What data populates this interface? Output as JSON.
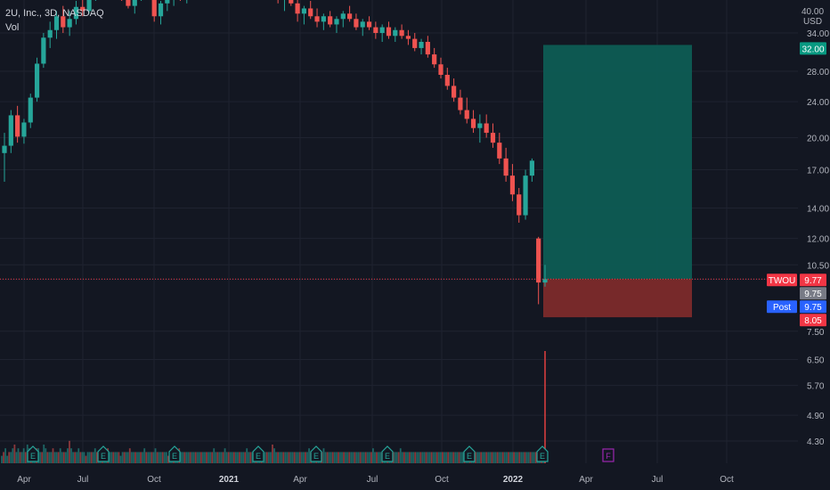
{
  "legend": {
    "title": "2U, Inc., 3D, NASDAQ",
    "vol": "Vol"
  },
  "axis": {
    "unit_top": "40.00",
    "unit_bottom": "USD"
  },
  "chart_data": {
    "type": "candlestick",
    "symbol": "TWOU",
    "scale": "log",
    "y_ticks": [
      "34.00",
      "28.00",
      "24.00",
      "20.00",
      "17.00",
      "14.00",
      "12.00",
      "10.50",
      "9.75",
      "7.50",
      "6.50",
      "5.70",
      "4.90",
      "4.30"
    ],
    "y_tick_values": [
      34,
      28,
      24,
      20,
      17,
      14,
      12,
      10.5,
      9.75,
      7.5,
      6.5,
      5.7,
      4.9,
      4.3
    ],
    "x_ticks": [
      "Apr",
      "Jul",
      "Oct",
      "2021",
      "Apr",
      "Jul",
      "Oct",
      "2022",
      "Apr",
      "Jul",
      "Oct"
    ],
    "x_tick_bold": [
      false,
      false,
      false,
      true,
      false,
      false,
      false,
      true,
      false,
      false,
      false
    ],
    "price_labels": [
      {
        "text": "32.00",
        "value": 32.0,
        "color": "#089981",
        "kind": "target"
      },
      {
        "text": "9.77",
        "value": 9.77,
        "color": "#f23645",
        "kind": "last",
        "tag": "TWOU"
      },
      {
        "text": "9.75",
        "value": 9.75,
        "color": "#787b86",
        "kind": "level"
      },
      {
        "text": "9.75",
        "value": 9.75,
        "color": "#2962ff",
        "kind": "post",
        "tag": "Post"
      },
      {
        "text": "8.05",
        "value": 8.05,
        "color": "#f23645",
        "kind": "stop"
      }
    ],
    "position": {
      "entry": 9.77,
      "target": 32.0,
      "stop": 8.05
    },
    "series": [
      {
        "name": "price",
        "points": [
          [
            18.5,
            20.5,
            16.0,
            19.2
          ],
          [
            19.2,
            23.0,
            18.5,
            22.4
          ],
          [
            22.4,
            23.5,
            19.5,
            20.1
          ],
          [
            20.1,
            22.0,
            19.4,
            21.6
          ],
          [
            21.6,
            25.0,
            21.0,
            24.5
          ],
          [
            24.5,
            30.0,
            24.0,
            29.1
          ],
          [
            29.1,
            34.0,
            28.5,
            33.2
          ],
          [
            33.2,
            36.0,
            31.5,
            34.5
          ],
          [
            34.5,
            38.0,
            33.0,
            37.0
          ],
          [
            37.0,
            39.0,
            34.0,
            35.0
          ],
          [
            35.0,
            38.0,
            33.5,
            36.5
          ],
          [
            36.5,
            40.0,
            35.5,
            38.8
          ],
          [
            38.8,
            41.0,
            37.0,
            38.0
          ],
          [
            38.0,
            42.0,
            37.5,
            41.5
          ],
          [
            41.5,
            44.0,
            40.0,
            42.5
          ],
          [
            42.5,
            46.0,
            41.0,
            44.0
          ],
          [
            44.0,
            48.0,
            42.0,
            46.5
          ],
          [
            46.5,
            48.0,
            42.0,
            43.0
          ],
          [
            43.0,
            45.0,
            40.0,
            41.5
          ],
          [
            41.5,
            43.5,
            38.5,
            39.0
          ],
          [
            39.0,
            42.0,
            37.5,
            41.0
          ],
          [
            41.0,
            44.0,
            40.0,
            43.5
          ],
          [
            43.5,
            46.0,
            41.5,
            42.0
          ],
          [
            42.0,
            44.0,
            36.0,
            37.0
          ],
          [
            37.0,
            40.0,
            35.5,
            39.5
          ],
          [
            39.5,
            42.0,
            38.0,
            40.5
          ],
          [
            40.5,
            43.0,
            39.0,
            42.0
          ],
          [
            42.0,
            44.0,
            40.0,
            41.0
          ],
          [
            41.0,
            43.0,
            39.5,
            42.5
          ],
          [
            42.5,
            45.0,
            41.5,
            44.5
          ],
          [
            44.5,
            47.0,
            43.0,
            45.5
          ],
          [
            45.5,
            48.0,
            44.0,
            46.5
          ],
          [
            46.5,
            49.0,
            45.0,
            45.8
          ],
          [
            45.8,
            48.0,
            44.5,
            47.0
          ],
          [
            47.0,
            50.0,
            46.0,
            48.5
          ],
          [
            48.5,
            50.0,
            46.5,
            47.0
          ],
          [
            47.0,
            49.0,
            45.5,
            48.0
          ],
          [
            48.0,
            50.0,
            47.0,
            49.5
          ],
          [
            49.5,
            51.0,
            47.5,
            48.0
          ],
          [
            48.0,
            49.5,
            45.5,
            46.0
          ],
          [
            46.0,
            48.0,
            43.5,
            44.0
          ],
          [
            44.0,
            46.0,
            41.0,
            42.0
          ],
          [
            42.0,
            44.0,
            39.5,
            40.5
          ],
          [
            40.5,
            42.0,
            38.0,
            41.5
          ],
          [
            41.5,
            43.0,
            39.0,
            39.5
          ],
          [
            39.5,
            41.0,
            36.0,
            37.5
          ],
          [
            37.5,
            39.0,
            35.5,
            38.5
          ],
          [
            38.5,
            40.0,
            36.5,
            37.0
          ],
          [
            37.0,
            38.5,
            35.0,
            36.0
          ],
          [
            36.0,
            37.5,
            34.5,
            37.0
          ],
          [
            37.0,
            38.0,
            35.0,
            35.5
          ],
          [
            35.5,
            37.0,
            34.0,
            36.5
          ],
          [
            36.5,
            38.0,
            35.0,
            37.5
          ],
          [
            37.5,
            39.0,
            36.0,
            36.5
          ],
          [
            36.5,
            37.5,
            34.5,
            35.0
          ],
          [
            35.0,
            36.5,
            33.5,
            36.0
          ],
          [
            36.0,
            37.0,
            34.5,
            35.0
          ],
          [
            35.0,
            36.0,
            33.0,
            34.0
          ],
          [
            34.0,
            35.5,
            32.5,
            35.0
          ],
          [
            35.0,
            36.0,
            33.0,
            33.5
          ],
          [
            33.5,
            35.0,
            32.5,
            34.5
          ],
          [
            34.5,
            35.5,
            33.0,
            33.5
          ],
          [
            33.5,
            34.5,
            32.0,
            33.0
          ],
          [
            33.0,
            34.0,
            31.0,
            31.5
          ],
          [
            31.5,
            33.0,
            30.5,
            32.5
          ],
          [
            32.5,
            33.5,
            30.0,
            30.5
          ],
          [
            30.5,
            31.5,
            28.5,
            29.0
          ],
          [
            29.0,
            30.0,
            27.0,
            27.5
          ],
          [
            27.5,
            28.5,
            25.5,
            26.0
          ],
          [
            26.0,
            27.0,
            24.0,
            24.5
          ],
          [
            24.5,
            25.5,
            22.5,
            23.0
          ],
          [
            23.0,
            24.5,
            21.5,
            22.0
          ],
          [
            22.0,
            23.0,
            20.5,
            21.0
          ],
          [
            21.0,
            22.5,
            19.5,
            21.5
          ],
          [
            21.5,
            22.5,
            20.0,
            20.5
          ],
          [
            20.5,
            21.5,
            19.0,
            19.5
          ],
          [
            19.5,
            20.5,
            17.5,
            18.0
          ],
          [
            18.0,
            19.0,
            16.0,
            16.5
          ],
          [
            16.5,
            17.5,
            14.5,
            15.0
          ],
          [
            15.0,
            15.5,
            13.0,
            13.5
          ],
          [
            13.5,
            17.0,
            13.2,
            16.5
          ],
          [
            16.5,
            18.0,
            16.0,
            17.8
          ],
          [
            12.0,
            12.1,
            8.6,
            9.6
          ],
          [
            9.6,
            10.5,
            9.4,
            9.77
          ]
        ]
      }
    ],
    "volume": [
      2,
      3,
      4,
      2,
      3,
      3,
      4,
      5,
      3,
      4,
      3,
      3,
      4,
      3,
      5,
      4,
      3,
      3,
      3,
      4,
      4,
      3,
      3,
      5,
      4,
      3,
      3,
      3,
      4,
      3,
      3,
      3,
      4,
      3,
      3,
      3,
      4,
      6,
      4,
      3,
      3,
      3,
      4,
      3,
      3,
      3,
      2,
      3,
      3,
      3,
      3,
      4,
      3,
      3,
      3,
      3,
      3,
      3,
      4,
      3,
      3,
      3,
      3,
      3,
      3,
      2,
      3,
      3,
      3,
      3,
      4,
      3,
      3,
      3,
      3,
      3,
      3,
      3,
      4,
      3,
      3,
      3,
      3,
      3,
      4,
      3,
      3,
      3,
      3,
      3,
      3,
      2,
      3,
      3,
      3,
      3,
      3,
      4,
      3,
      3,
      3,
      3,
      3,
      3,
      3,
      3,
      3,
      3,
      3,
      3,
      3,
      3,
      3,
      3,
      3,
      3,
      4,
      3,
      3,
      3,
      3,
      3,
      4,
      3,
      3,
      3,
      3,
      3,
      3,
      3,
      3,
      3,
      3,
      3,
      4,
      3,
      3,
      3,
      3,
      3,
      3,
      3,
      3,
      3,
      3,
      3,
      3,
      3,
      5,
      4,
      3,
      3,
      3,
      3,
      3,
      3,
      3,
      3,
      3,
      3,
      3,
      3,
      3,
      3,
      3,
      3,
      3,
      3,
      4,
      3,
      3,
      3,
      3,
      3,
      3,
      3,
      4,
      3,
      3,
      3,
      3,
      3,
      3,
      3,
      3,
      3,
      3,
      3,
      3,
      3,
      3,
      3,
      3,
      3,
      3,
      3,
      3,
      3,
      3,
      3,
      3,
      3,
      3,
      4,
      3,
      3,
      3,
      3,
      3,
      3,
      3,
      3,
      3,
      3,
      3,
      3,
      3,
      3,
      4,
      3,
      3,
      3,
      3,
      3,
      3,
      3,
      3,
      3,
      3,
      3,
      3,
      3,
      3,
      3,
      3,
      3,
      3,
      3,
      3,
      3,
      3,
      3,
      3,
      3,
      3,
      3,
      3,
      3,
      3,
      3,
      3,
      3,
      3,
      3,
      3,
      3,
      3,
      3,
      3,
      3,
      3,
      3,
      3,
      3,
      3,
      3,
      3,
      3,
      3,
      3,
      3,
      3,
      3,
      3,
      3,
      3,
      3,
      3,
      3,
      3,
      3,
      3,
      3,
      3,
      3,
      3,
      3,
      3,
      3,
      3,
      3,
      3,
      3,
      3,
      3,
      3,
      3,
      30
    ],
    "events": [
      {
        "label": "E",
        "kind": "earnings"
      },
      {
        "label": "E",
        "kind": "earnings"
      },
      {
        "label": "E",
        "kind": "earnings"
      },
      {
        "label": "E",
        "kind": "earnings"
      },
      {
        "label": "E",
        "kind": "earnings"
      },
      {
        "label": "E",
        "kind": "earnings"
      },
      {
        "label": "E",
        "kind": "earnings"
      },
      {
        "label": "E",
        "kind": "earnings"
      },
      {
        "label": "F",
        "kind": "future"
      }
    ],
    "colors": {
      "up": "#26a69a",
      "down": "#ef5350",
      "background": "#131722",
      "grid": "#1f2330",
      "position_profit": "#0d5c54",
      "position_loss": "#7c2a2b"
    }
  }
}
